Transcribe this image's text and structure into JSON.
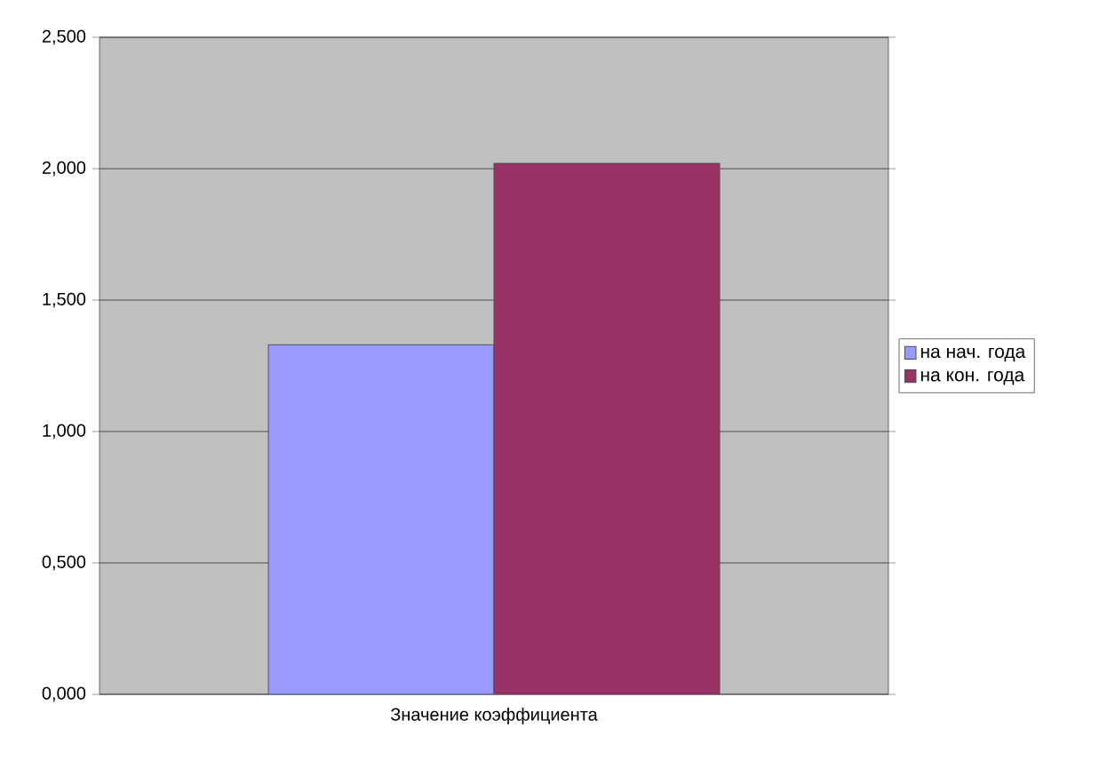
{
  "chart_data": {
    "type": "bar",
    "categories": [
      "Значение коэффициента"
    ],
    "series": [
      {
        "name": "на нач. года",
        "color": "#9999ff",
        "values": [
          1.33
        ]
      },
      {
        "name": "на кон. года",
        "color": "#993366",
        "values": [
          2.02
        ]
      }
    ],
    "ylim": [
      0,
      2.5
    ],
    "yticks": [
      {
        "value": 0,
        "label": "0,000"
      },
      {
        "value": 0.5,
        "label": "0,500"
      },
      {
        "value": 1,
        "label": "1,000"
      },
      {
        "value": 1.5,
        "label": "1,500"
      },
      {
        "value": 2,
        "label": "2,000"
      },
      {
        "value": 2.5,
        "label": "2,500"
      }
    ],
    "grid": "y",
    "legend": "right"
  }
}
